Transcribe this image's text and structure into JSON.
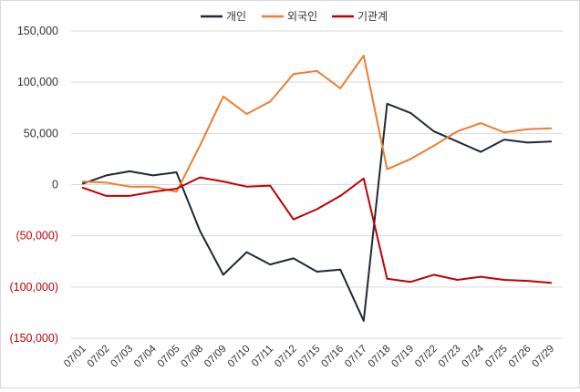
{
  "chart_data": {
    "type": "line",
    "title": "",
    "xlabel": "",
    "ylabel": "",
    "legend_position": "top",
    "grid": true,
    "ylim": [
      -150000,
      150000
    ],
    "yticks": [
      150000,
      100000,
      50000,
      0,
      -50000,
      -100000,
      -150000
    ],
    "ytick_labels": [
      "150,000",
      "100,000",
      "50,000",
      "0",
      "(50,000)",
      "(100,000)",
      "(150,000)"
    ],
    "negative_tick_color": "#c00000",
    "categories": [
      "07/01",
      "07/02",
      "07/03",
      "07/04",
      "07/05",
      "07/08",
      "07/09",
      "07/10",
      "07/11",
      "07/12",
      "07/15",
      "07/16",
      "07/17",
      "07/18",
      "07/19",
      "07/22",
      "07/23",
      "07/24",
      "07/25",
      "07/26",
      "07/29"
    ],
    "series": [
      {
        "name": "개인",
        "color": "#1f2937",
        "values": [
          1000,
          9000,
          13000,
          9000,
          12000,
          -45000,
          -88000,
          -66000,
          -78000,
          -72000,
          -85000,
          -83000,
          -133000,
          79000,
          70000,
          52000,
          42000,
          32000,
          44000,
          41000,
          42000
        ]
      },
      {
        "name": "외국인",
        "color": "#ed7d31",
        "values": [
          3000,
          2000,
          -2000,
          -2000,
          -7000,
          38000,
          86000,
          69000,
          81000,
          108000,
          111000,
          94000,
          126000,
          15000,
          25000,
          38000,
          52000,
          60000,
          51000,
          54000,
          55000
        ]
      },
      {
        "name": "기관계",
        "color": "#c00000",
        "values": [
          -3000,
          -11000,
          -11000,
          -7000,
          -4000,
          7000,
          3000,
          -2000,
          -1000,
          -34000,
          -24000,
          -11000,
          6000,
          -92000,
          -95000,
          -88000,
          -93000,
          -90000,
          -93000,
          -94000,
          -96000
        ]
      }
    ]
  }
}
